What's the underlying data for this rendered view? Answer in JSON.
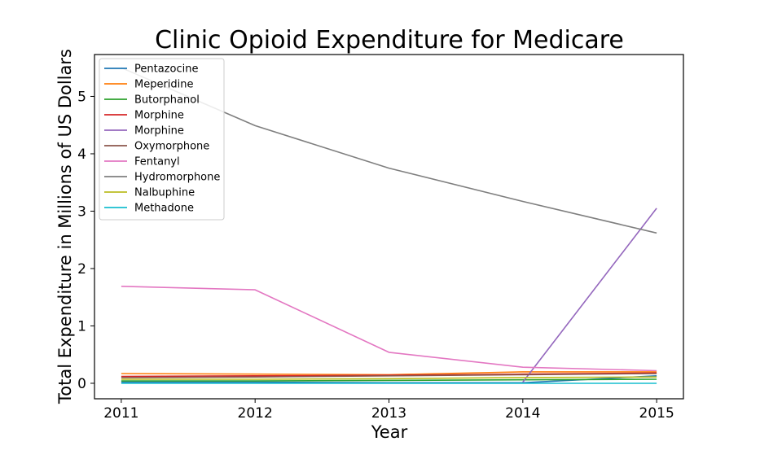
{
  "chart_data": {
    "type": "line",
    "title": "Clinic Opioid Expenditure for Medicare",
    "xlabel": "Year",
    "ylabel": "Total Expenditure in Millions of US Dollars",
    "x": [
      2011,
      2012,
      2013,
      2014,
      2015
    ],
    "x_ticks": [
      "2011",
      "2012",
      "2013",
      "2014",
      "2015"
    ],
    "y_ticks": [
      "0",
      "1",
      "2",
      "3",
      "4",
      "5"
    ],
    "xlim": [
      2010.8,
      2015.2
    ],
    "ylim": [
      -0.27,
      5.73
    ],
    "grid": false,
    "legend_position": "top-left",
    "series": [
      {
        "name": "Pentazocine",
        "color": "#1f77b4",
        "values": [
          0.02,
          0.02,
          0.01,
          0.01,
          0.13
        ]
      },
      {
        "name": "Meperidine",
        "color": "#ff7f0e",
        "values": [
          0.17,
          0.16,
          0.15,
          0.2,
          0.2
        ]
      },
      {
        "name": "Butorphanol",
        "color": "#2ca02c",
        "values": [
          0.04,
          0.04,
          0.05,
          0.06,
          0.07
        ]
      },
      {
        "name": "Morphine",
        "color": "#d62728",
        "values": [
          0.12,
          0.13,
          0.14,
          0.16,
          0.18
        ]
      },
      {
        "name": "Morphine",
        "color": "#9467bd",
        "values": [
          null,
          null,
          null,
          0.02,
          3.05
        ]
      },
      {
        "name": "Oxymorphone",
        "color": "#8c564b",
        "values": [
          0.1,
          0.11,
          0.13,
          0.15,
          0.17
        ]
      },
      {
        "name": "Fentanyl",
        "color": "#e377c2",
        "values": [
          1.69,
          1.63,
          0.54,
          0.28,
          0.22
        ]
      },
      {
        "name": "Hydromorphone",
        "color": "#7f7f7f",
        "values": [
          5.5,
          4.49,
          3.75,
          3.17,
          2.62
        ]
      },
      {
        "name": "Nalbuphine",
        "color": "#bcbd22",
        "values": [
          0.07,
          0.07,
          0.08,
          0.1,
          0.11
        ]
      },
      {
        "name": "Methadone",
        "color": "#17becf",
        "values": [
          0.0,
          0.0,
          0.0,
          0.0,
          0.0
        ]
      }
    ]
  }
}
